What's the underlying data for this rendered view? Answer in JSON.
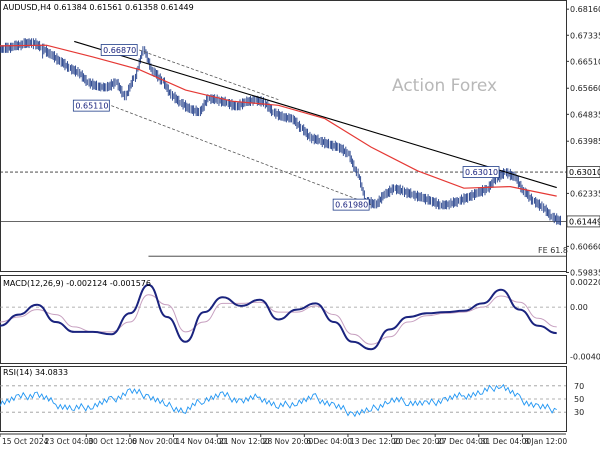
{
  "header": {
    "symbol_line": "AUDUSD,H4  0.61384 0.61561 0.61358 0.61449",
    "watermark": "Action Forex"
  },
  "colors": {
    "price_bars": "#1f3c88",
    "ma_line": "#e53935",
    "trendline": "#000000",
    "channel_dash": "#555555",
    "macd_line": "#1a237e",
    "signal_line": "#c7a0c0",
    "rsi_line": "#2196f3",
    "label_border": "#1f3c88",
    "grid_dash": "#999999"
  },
  "chart_data": [
    {
      "type": "line",
      "panel": "price",
      "title": "AUDUSD,H4  0.61384 0.61561 0.61358 0.61449",
      "ohlc_last": {
        "open": 0.61384,
        "high": 0.61561,
        "low": 0.61358,
        "close": 0.61449
      },
      "ylim": [
        0.5985,
        0.6845
      ],
      "y_ticks": [
        "0.68160",
        "0.67335",
        "0.66510",
        "0.65660",
        "0.64835",
        "0.63985",
        "0.63010",
        "0.62335",
        "0.61449",
        "0.60660",
        "0.59835"
      ],
      "x_ticks": [
        "15 Oct 2024",
        "23 Oct 04:00",
        "30 Oct 12:00",
        "6 Nov 20:00",
        "14 Nov 04:00",
        "21 Nov 12:00",
        "28 Nov 20:00",
        "6 Dec 04:00",
        "13 Dec 12:00",
        "20 Dec 20:00",
        "27 Dec 04:00",
        "31 Dec 04:00",
        "8 Jan 12:00"
      ],
      "series": [
        {
          "name": "",
          "kind": "price",
          "x": [
            0,
            1,
            2,
            3,
            4,
            5,
            6,
            7,
            8,
            9,
            10,
            11,
            12,
            13,
            14,
            15,
            16,
            17,
            18,
            19,
            20,
            21,
            22,
            23,
            24,
            25,
            26,
            27,
            28,
            29,
            30,
            31,
            32,
            33,
            34,
            35,
            36,
            37,
            38,
            39,
            40,
            41,
            42,
            43,
            44,
            45,
            46,
            47,
            48,
            49,
            50,
            51,
            52,
            53,
            54,
            55,
            56,
            57,
            58,
            59,
            60
          ],
          "values": [
            0.669,
            0.6698,
            0.6705,
            0.6712,
            0.6695,
            0.6672,
            0.6652,
            0.663,
            0.6615,
            0.6585,
            0.6572,
            0.6568,
            0.6585,
            0.654,
            0.6598,
            0.6687,
            0.662,
            0.659,
            0.6545,
            0.652,
            0.65,
            0.649,
            0.6535,
            0.6528,
            0.652,
            0.6508,
            0.6522,
            0.653,
            0.652,
            0.649,
            0.6475,
            0.647,
            0.644,
            0.641,
            0.64,
            0.6388,
            0.638,
            0.636,
            0.63,
            0.621,
            0.6198,
            0.623,
            0.625,
            0.624,
            0.623,
            0.622,
            0.621,
            0.6195,
            0.62,
            0.621,
            0.6222,
            0.6235,
            0.6248,
            0.628,
            0.6301,
            0.6285,
            0.624,
            0.621,
            0.619,
            0.616,
            0.6145
          ]
        },
        {
          "name": "",
          "kind": "moving-average",
          "x": [
            0,
            5,
            10,
            15,
            20,
            25,
            30,
            35,
            40,
            45,
            50,
            55,
            60
          ],
          "values": [
            0.67,
            0.6702,
            0.6665,
            0.6625,
            0.656,
            0.6525,
            0.6512,
            0.647,
            0.638,
            0.6305,
            0.625,
            0.6255,
            0.6225
          ]
        }
      ],
      "trendlines": [
        {
          "kind": "falling-resistance",
          "x": [
            8,
            60
          ],
          "values": [
            0.6714,
            0.6252
          ]
        },
        {
          "kind": "channel-dashed-upper",
          "x": [
            15,
            30
          ],
          "values": [
            0.6687,
            0.653
          ]
        },
        {
          "kind": "channel-dashed-lower",
          "x": [
            12,
            40
          ],
          "values": [
            0.6511,
            0.6198
          ]
        }
      ],
      "horizontal_levels": [
        {
          "value": 0.6301,
          "style": "dashed"
        },
        {
          "value": 0.6145,
          "style": "solid"
        },
        {
          "value": 0.6035,
          "style": "solid",
          "label": "FE 61.8"
        }
      ],
      "annotations": [
        {
          "text": "0.66870",
          "x": 15,
          "y": 0.6687
        },
        {
          "text": "0.65110",
          "x": 12,
          "y": 0.6511
        },
        {
          "text": "0.61980",
          "x": 40,
          "y": 0.6198
        },
        {
          "text": "0.63010",
          "x": 54,
          "y": 0.6301
        }
      ],
      "price_tags": [
        {
          "text": "0.63010",
          "y": 0.6301
        },
        {
          "text": "0.61449",
          "y": 0.61449
        }
      ]
    },
    {
      "type": "line",
      "panel": "macd",
      "title": "MACD(12,26,9) -0.002124 -0.001576",
      "ylim": [
        -0.0046,
        0.0026
      ],
      "y_ticks": [
        "0.002208",
        "0.00",
        "-0.004012"
      ],
      "series": [
        {
          "name": "",
          "kind": "macd",
          "x": [
            0,
            2,
            4,
            6,
            8,
            10,
            12,
            14,
            16,
            18,
            20,
            22,
            24,
            26,
            28,
            30,
            32,
            34,
            36,
            38,
            40,
            42,
            44,
            46,
            48,
            50,
            52,
            54,
            56,
            58,
            60
          ],
          "values": [
            -0.0015,
            -0.0006,
            0.0002,
            -0.0012,
            -0.002,
            -0.002,
            -0.0022,
            -0.0005,
            0.0018,
            -0.0008,
            -0.0028,
            -0.0004,
            0.0008,
            0.0001,
            0.0006,
            -0.001,
            -0.0002,
            0.0003,
            -0.0012,
            -0.0028,
            -0.0034,
            -0.0018,
            -0.0008,
            -0.0005,
            -0.0004,
            -0.0003,
            0.0003,
            0.0014,
            -0.0002,
            -0.0015,
            -0.0021
          ]
        },
        {
          "name": "",
          "kind": "signal",
          "x": [
            0,
            2,
            4,
            6,
            8,
            10,
            12,
            14,
            16,
            18,
            20,
            22,
            24,
            26,
            28,
            30,
            32,
            34,
            36,
            38,
            40,
            42,
            44,
            46,
            48,
            50,
            52,
            54,
            56,
            58,
            60
          ],
          "values": [
            -0.0012,
            -0.0008,
            -0.0002,
            -0.0006,
            -0.0016,
            -0.002,
            -0.002,
            -0.0012,
            0.001,
            0.0002,
            -0.002,
            -0.0012,
            0.0003,
            0.0003,
            0.0004,
            -0.0004,
            -0.0004,
            0.0001,
            -0.0006,
            -0.0022,
            -0.003,
            -0.0024,
            -0.0012,
            -0.0007,
            -0.0005,
            -0.0004,
            0.0,
            0.0009,
            0.0004,
            -0.0009,
            -0.0016
          ]
        }
      ],
      "zero_line": 0
    },
    {
      "type": "line",
      "panel": "rsi",
      "title": "RSI(14) 34.0833",
      "ylim": [
        0,
        100
      ],
      "y_ticks": [
        "70",
        "50",
        "30"
      ],
      "series": [
        {
          "name": "",
          "kind": "rsi",
          "x": [
            0,
            2,
            4,
            6,
            8,
            10,
            12,
            14,
            16,
            18,
            20,
            22,
            24,
            26,
            28,
            30,
            32,
            34,
            36,
            38,
            40,
            42,
            44,
            46,
            48,
            50,
            52,
            54,
            56,
            58,
            60
          ],
          "values": [
            45,
            52,
            58,
            42,
            35,
            40,
            48,
            62,
            55,
            40,
            32,
            50,
            56,
            47,
            53,
            38,
            45,
            52,
            40,
            28,
            33,
            48,
            46,
            42,
            50,
            55,
            60,
            72,
            50,
            38,
            34
          ]
        }
      ],
      "reference_levels": [
        70,
        50,
        30
      ]
    }
  ]
}
